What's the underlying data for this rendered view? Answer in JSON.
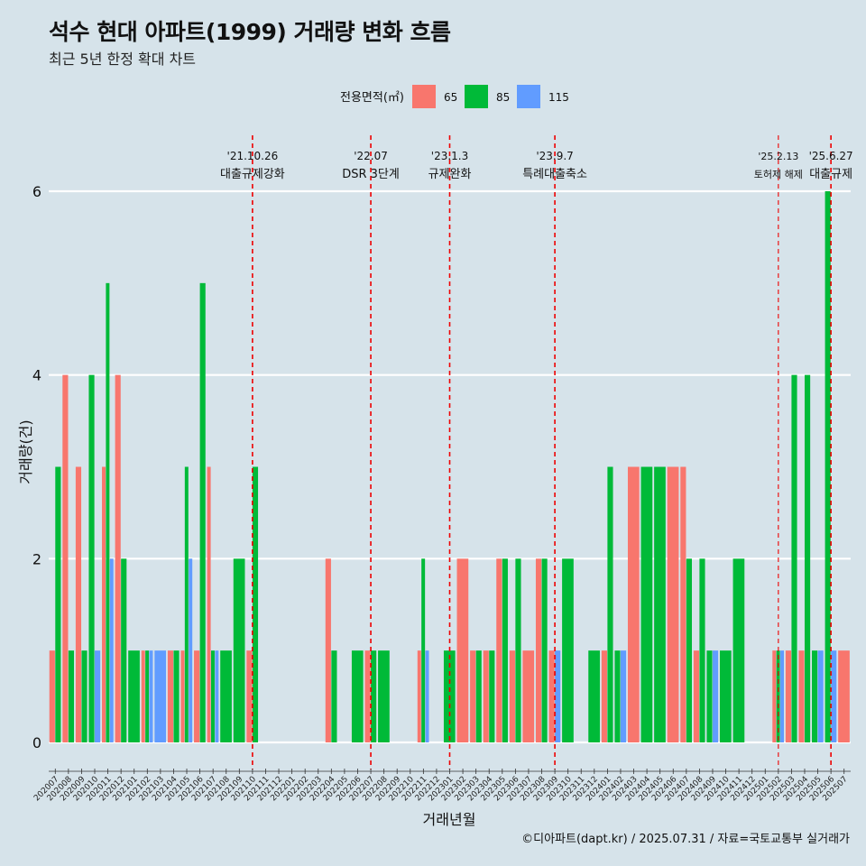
{
  "title": "석수 현대 아파트(1999) 거래량 변화 흐름",
  "subtitle": "최근 5년 한정 확대 차트",
  "caption": "©디아파트(dapt.kr) / 2025.07.31 / 자료=국토교통부 실거래가",
  "colors": {
    "65": "#f8766d",
    "85": "#00ba38",
    "115": "#619cff",
    "background": "#d6e3ea",
    "grid": "#ffffff",
    "event_line": "#ee0000"
  },
  "chart_data": {
    "type": "bar",
    "position": "dodge",
    "xlabel": "거래년월",
    "ylabel": "거래량(건)",
    "ylim": [
      0,
      6
    ],
    "yticks": [
      0,
      2,
      4,
      6
    ],
    "grid": true,
    "legend": {
      "title": "전용면적(㎡)",
      "placement": "top"
    },
    "categories": [
      "202007",
      "202008",
      "202009",
      "202010",
      "202011",
      "202012",
      "202101",
      "202102",
      "202103",
      "202104",
      "202105",
      "202106",
      "202107",
      "202108",
      "202109",
      "202110",
      "202111",
      "202112",
      "202201",
      "202202",
      "202203",
      "202204",
      "202205",
      "202206",
      "202207",
      "202208",
      "202209",
      "202210",
      "202211",
      "202212",
      "202301",
      "202302",
      "202303",
      "202304",
      "202305",
      "202306",
      "202307",
      "202308",
      "202309",
      "202310",
      "202311",
      "202312",
      "202401",
      "202402",
      "202403",
      "202404",
      "202405",
      "202406",
      "202407",
      "202408",
      "202409",
      "202410",
      "202411",
      "202412",
      "202501",
      "202502",
      "202503",
      "202504",
      "202505",
      "202506",
      "202507"
    ],
    "series": [
      {
        "name": "65",
        "color": "#f8766d",
        "values": [
          1,
          4,
          3,
          0,
          3,
          4,
          0,
          1,
          0,
          1,
          1,
          1,
          3,
          0,
          0,
          1,
          0,
          0,
          0,
          0,
          0,
          2,
          0,
          0,
          1,
          0,
          0,
          0,
          1,
          0,
          0,
          2,
          1,
          1,
          2,
          1,
          1,
          2,
          1,
          0,
          0,
          0,
          1,
          0,
          3,
          0,
          0,
          3,
          3,
          1,
          0,
          0,
          0,
          0,
          0,
          1,
          1,
          1,
          0,
          0,
          1
        ]
      },
      {
        "name": "85",
        "color": "#00ba38",
        "values": [
          3,
          1,
          1,
          4,
          5,
          2,
          1,
          1,
          0,
          1,
          3,
          5,
          1,
          1,
          2,
          3,
          0,
          0,
          0,
          0,
          0,
          1,
          0,
          1,
          1,
          1,
          0,
          0,
          2,
          0,
          1,
          0,
          1,
          1,
          2,
          2,
          0,
          2,
          0,
          2,
          0,
          1,
          3,
          1,
          0,
          3,
          3,
          0,
          2,
          2,
          1,
          1,
          2,
          0,
          0,
          1,
          4,
          4,
          1,
          6,
          0
        ]
      },
      {
        "name": "115",
        "color": "#619cff",
        "values": [
          0,
          0,
          0,
          1,
          2,
          0,
          0,
          1,
          1,
          0,
          2,
          0,
          1,
          0,
          0,
          0,
          0,
          0,
          0,
          0,
          0,
          0,
          0,
          0,
          0,
          0,
          0,
          0,
          1,
          0,
          0,
          0,
          0,
          0,
          0,
          0,
          0,
          0,
          1,
          0,
          0,
          0,
          0,
          1,
          0,
          0,
          0,
          0,
          0,
          0,
          1,
          0,
          0,
          0,
          0,
          1,
          0,
          0,
          1,
          1,
          0
        ]
      }
    ],
    "events": [
      {
        "date": "'21.10.26",
        "label": "대출규제강화",
        "month": "202110",
        "style": "dashed"
      },
      {
        "date": "'22.07",
        "label": "DSR 3단계",
        "month": "202207",
        "style": "dashed"
      },
      {
        "date": "'23.1.3",
        "label": "규제완화",
        "month": "202301",
        "style": "dashed"
      },
      {
        "date": "'23.9.7",
        "label": "특례대출축소",
        "month": "202309",
        "style": "dashed"
      },
      {
        "date": "'25.2.13",
        "label": "토허제 해제",
        "month": "202502",
        "style": "dashed-thin"
      },
      {
        "date": "'25.6.27",
        "label": "대출규제",
        "month": "202506",
        "style": "dashed"
      }
    ]
  }
}
